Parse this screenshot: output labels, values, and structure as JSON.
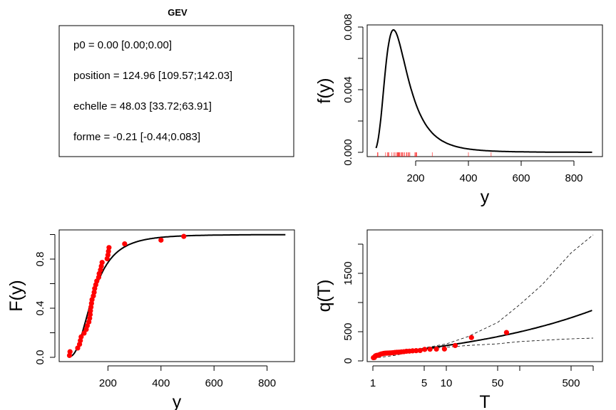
{
  "summary_panel": {
    "title": "GEV",
    "lines": [
      "p0 = 0.00 [0.00;0.00]",
      "position = 124.96 [109.57;142.03]",
      "echelle = 48.03 [33.72;63.91]",
      "forme = -0.21 [-0.44;0.083]"
    ]
  },
  "chart_data": [
    {
      "type": "line",
      "id": "density",
      "xlabel": "y",
      "ylabel": "f(y)",
      "xlim": [
        50,
        870
      ],
      "ylim": [
        0,
        0.008
      ],
      "xticks": [
        "200",
        "400",
        "600",
        "800"
      ],
      "yticks": [
        "0.000",
        "0.004",
        "0.008"
      ],
      "yticks_minor": [
        0.002,
        0.006
      ],
      "gev": {
        "position": 124.96,
        "echelle": 48.03,
        "forme": -0.21
      },
      "rug_color": "#ff0000",
      "line_color": "#000000"
    },
    {
      "type": "scatter",
      "id": "cdf",
      "xlabel": "y",
      "ylabel": "F(y)",
      "xlim": [
        50,
        870
      ],
      "ylim": [
        0,
        1
      ],
      "xticks": [
        "200",
        "400",
        "600",
        "800"
      ],
      "yticks": [
        "0.0",
        "0.4",
        "0.8"
      ],
      "yticks_minor": [
        0.2,
        0.6,
        1.0
      ],
      "point_color": "#ff0000",
      "observations": [
        55,
        57,
        86,
        93,
        96,
        99,
        110,
        118,
        122,
        128,
        131,
        133,
        134,
        136,
        138,
        140,
        145,
        148,
        150,
        154,
        158,
        165,
        167,
        172,
        175,
        178,
        197,
        200,
        202,
        204,
        263,
        400,
        486
      ]
    },
    {
      "type": "line",
      "id": "return-level",
      "xlabel": "T",
      "ylabel": "q(T)",
      "xscale": "log",
      "xlim": [
        1,
        1000
      ],
      "ylim": [
        0,
        2200
      ],
      "xticks": [
        "1",
        "5",
        "10",
        "50",
        "500"
      ],
      "xticks_minor": [
        100,
        1000
      ],
      "yticks": [
        "0",
        "500",
        "1500"
      ],
      "yticks_minor": [
        1000,
        2000
      ],
      "confidence_band": {
        "T": [
          1.01,
          2,
          5,
          10,
          20,
          50,
          100,
          200,
          500,
          1000
        ],
        "lower": [
          45,
          95,
          195,
          235,
          265,
          293,
          330,
          352,
          378,
          390
        ],
        "upper": [
          80,
          122,
          225,
          290,
          420,
          658,
          963,
          1300,
          1850,
          2160
        ]
      },
      "point_color": "#ff0000"
    }
  ]
}
